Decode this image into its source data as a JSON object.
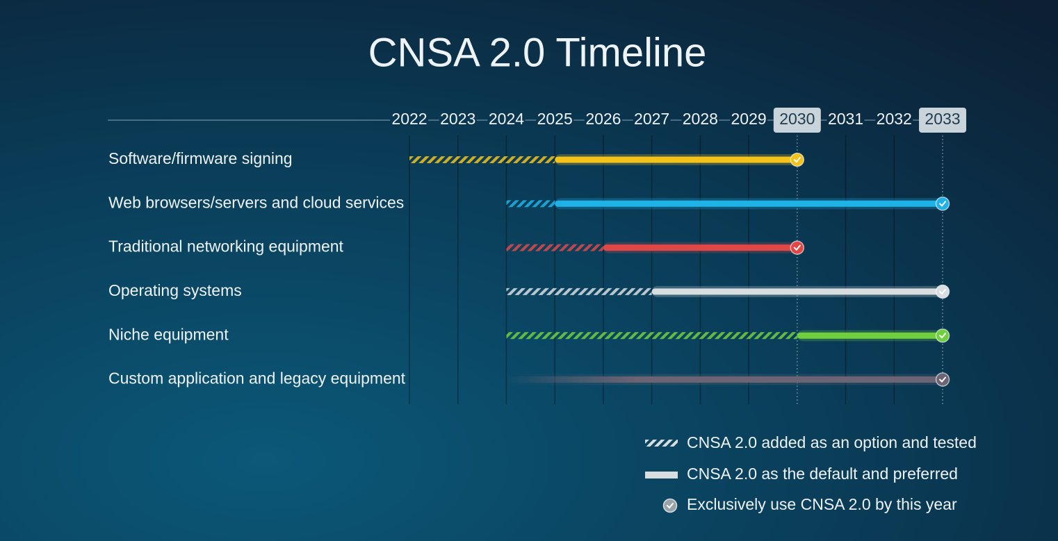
{
  "chart_data": {
    "type": "timeline",
    "title": "CNSA 2.0 Timeline",
    "xlim": [
      2022,
      2033
    ],
    "xticks": [
      2022,
      2023,
      2024,
      2025,
      2026,
      2027,
      2028,
      2029,
      2030,
      2031,
      2032,
      2033
    ],
    "tasks": [
      {
        "name": "Software/firmware signing",
        "color": "#f3c21b",
        "option": [
          2022,
          2025
        ],
        "default": [
          2025,
          2030
        ],
        "exclusive": 2030
      },
      {
        "name": "Web browsers/servers and cloud services",
        "color": "#1fb2e6",
        "option": [
          2024,
          2025
        ],
        "default": [
          2025,
          2033
        ],
        "exclusive": 2033
      },
      {
        "name": "Traditional networking equipment",
        "color": "#e04848",
        "option": [
          2024,
          2026
        ],
        "default": [
          2026,
          2030
        ],
        "exclusive": 2030
      },
      {
        "name": "Operating systems",
        "color": "#d8dde0",
        "option": [
          2024,
          2027
        ],
        "default": [
          2027,
          2033
        ],
        "exclusive": 2033
      },
      {
        "name": "Niche equipment",
        "color": "#6fcf3f",
        "option": [
          2024,
          2030
        ],
        "default": [
          2030,
          2033
        ],
        "exclusive": 2033
      },
      {
        "name": "Custom application and legacy equipment",
        "color": "#6a6474",
        "default": [
          2024,
          2033
        ],
        "exclusive": 2033
      }
    ],
    "legend": {
      "option": "CNSA 2.0 added as an option and tested",
      "default": "CNSA 2.0 as the default and preferred",
      "exclusive": "Exclusively use CNSA 2.0 by this year"
    }
  }
}
